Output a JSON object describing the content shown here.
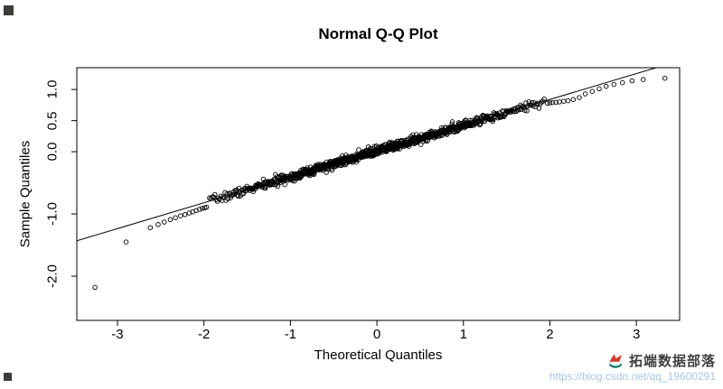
{
  "title": "Normal Q-Q Plot",
  "axes": {
    "x_label": "Theoretical Quantiles",
    "y_label": "Sample Quantiles",
    "x_ticks": [
      {
        "value": -3,
        "label": "-3"
      },
      {
        "value": -2,
        "label": "-2"
      },
      {
        "value": -1,
        "label": "-1"
      },
      {
        "value": 0,
        "label": "0"
      },
      {
        "value": 1,
        "label": "1"
      },
      {
        "value": 2,
        "label": "2"
      },
      {
        "value": 3,
        "label": "3"
      }
    ],
    "y_ticks": [
      {
        "value": 1.0,
        "label": "1.0"
      },
      {
        "value": 0.5,
        "label": "0.5"
      },
      {
        "value": 0.0,
        "label": "0.0"
      },
      {
        "value": -1.0,
        "label": "-1.0"
      },
      {
        "value": -2.0,
        "label": "-2.0"
      }
    ]
  },
  "watermark": {
    "name": "拓端数据部落",
    "url": "https://blog.csdn.net/qq_19600291",
    "text_color": "#3f3f3f",
    "url_color": "#a9c5e2",
    "logo_colors": [
      "#d23b2e",
      "#1d7a74"
    ]
  },
  "chart_data": {
    "type": "scatter",
    "title": "Normal Q-Q Plot",
    "xlabel": "Theoretical Quantiles",
    "ylabel": "Sample Quantiles",
    "xlim": [
      -3.47,
      3.5
    ],
    "ylim": [
      -2.71,
      1.35
    ],
    "x_ticks": [
      -3,
      -2,
      -1,
      0,
      1,
      2,
      3
    ],
    "y_ticks": [
      -2.0,
      -1.0,
      0.0,
      0.5,
      1.0
    ],
    "grid": false,
    "legend": false,
    "reference_line": {
      "slope": 0.415,
      "intercept": 0.01,
      "color": "#000000",
      "width": 1
    },
    "marker": {
      "shape": "open-circle",
      "radius": 2.3,
      "color": "#000000",
      "stroke_width": 0.9
    },
    "bulk": {
      "description": "dense central band of ~950 points hugging the reference line",
      "n": 1000,
      "q_min": -1.95,
      "q_max": 1.95,
      "slope": 0.415,
      "intercept": 0.01,
      "noise_sd": 0.035,
      "seed": 7
    },
    "tail_points": [
      [
        -3.26,
        -2.18
      ],
      [
        -2.9,
        -1.45
      ],
      [
        -2.62,
        -1.22
      ],
      [
        -2.53,
        -1.17
      ],
      [
        -2.46,
        -1.13
      ],
      [
        -2.39,
        -1.09
      ],
      [
        -2.33,
        -1.06
      ],
      [
        -2.27,
        -1.03
      ],
      [
        -2.22,
        -1.01
      ],
      [
        -2.17,
        -0.985
      ],
      [
        -2.13,
        -0.965
      ],
      [
        -2.09,
        -0.945
      ],
      [
        -2.05,
        -0.925
      ],
      [
        -2.02,
        -0.91
      ],
      [
        -1.99,
        -0.9
      ],
      [
        -1.97,
        -0.89
      ],
      [
        1.97,
        0.78
      ],
      [
        2.0,
        0.785
      ],
      [
        2.03,
        0.79
      ],
      [
        2.07,
        0.795
      ],
      [
        2.11,
        0.8
      ],
      [
        2.16,
        0.81
      ],
      [
        2.21,
        0.82
      ],
      [
        2.27,
        0.84
      ],
      [
        2.34,
        0.87
      ],
      [
        2.41,
        0.93
      ],
      [
        2.49,
        0.97
      ],
      [
        2.57,
        1.01
      ],
      [
        2.65,
        1.05
      ],
      [
        2.74,
        1.08
      ],
      [
        2.84,
        1.11
      ],
      [
        2.95,
        1.14
      ],
      [
        3.08,
        1.16
      ],
      [
        3.33,
        1.18
      ]
    ]
  }
}
